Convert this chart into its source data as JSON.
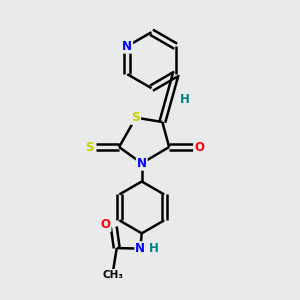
{
  "background_color": "#e8eaec",
  "atom_colors": {
    "N": "#0000ff",
    "O": "#ff0000",
    "S": "#cccc00",
    "C": "#000000",
    "H": "#008080"
  },
  "bond_color": "#000000",
  "bond_width": 1.8,
  "figsize": [
    3.0,
    3.0
  ],
  "dpi": 100
}
